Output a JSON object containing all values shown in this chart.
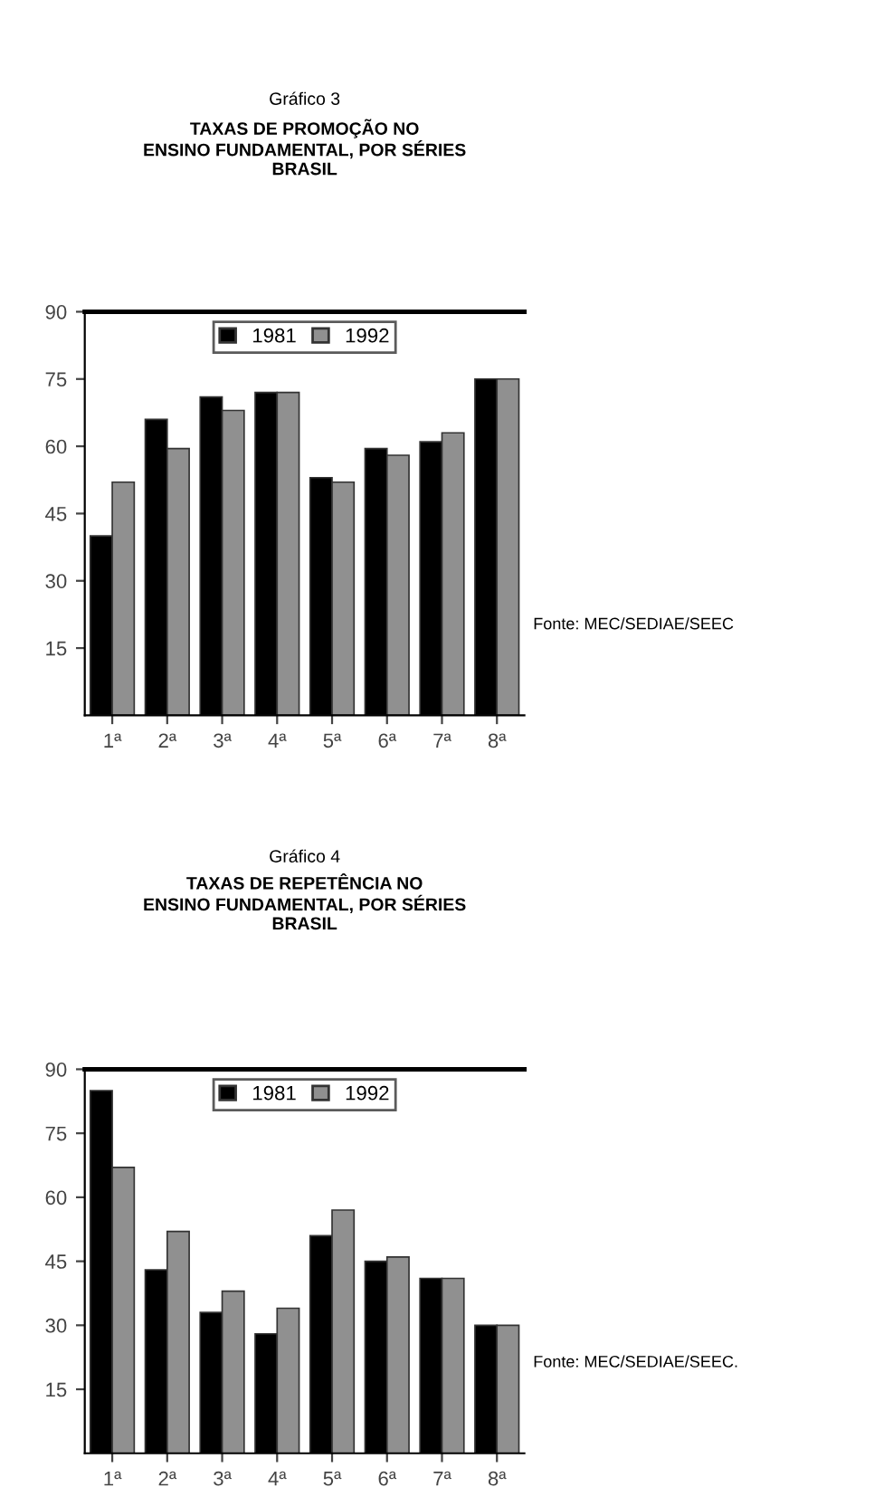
{
  "chart_data": [
    {
      "type": "bar",
      "title": "Gráfico 3",
      "subtitle": "TAXAS DE PROMOÇÃO NO\nENSINO FUNDAMENTAL, POR SÉRIES\nBRASIL",
      "categories": [
        "1ª",
        "2ª",
        "3ª",
        "4ª",
        "5ª",
        "6ª",
        "7ª",
        "8ª"
      ],
      "series": [
        {
          "name": "1981",
          "color": "#000000",
          "values": [
            40,
            66,
            71,
            72,
            53,
            59.5,
            61,
            75
          ]
        },
        {
          "name": "1992",
          "color": "#909090",
          "values": [
            52,
            59.5,
            68,
            72,
            52,
            58,
            63,
            75
          ]
        }
      ],
      "ylim": [
        0,
        90
      ],
      "yticks": [
        15,
        30,
        45,
        60,
        75,
        90
      ],
      "legend": "top",
      "grid": false,
      "annotations": [
        "Fonte: MEC/SEDIAE/SEEC"
      ]
    },
    {
      "type": "bar",
      "title": "Gráfico 4",
      "subtitle": "TAXAS DE REPETÊNCIA NO\nENSINO FUNDAMENTAL, POR SÉRIES\nBRASIL",
      "categories": [
        "1ª",
        "2ª",
        "3ª",
        "4ª",
        "5ª",
        "6ª",
        "7ª",
        "8ª"
      ],
      "series": [
        {
          "name": "1981",
          "color": "#000000",
          "values": [
            85,
            43,
            33,
            28,
            51,
            45,
            41,
            30
          ]
        },
        {
          "name": "1992",
          "color": "#909090",
          "values": [
            67,
            52,
            38,
            34,
            57,
            46,
            41,
            30
          ]
        }
      ],
      "ylim": [
        0,
        90
      ],
      "yticks": [
        15,
        30,
        45,
        60,
        75,
        90
      ],
      "legend": "top",
      "grid": false,
      "annotations": [
        "Fonte: MEC/SEDIAE/SEEC."
      ]
    }
  ]
}
